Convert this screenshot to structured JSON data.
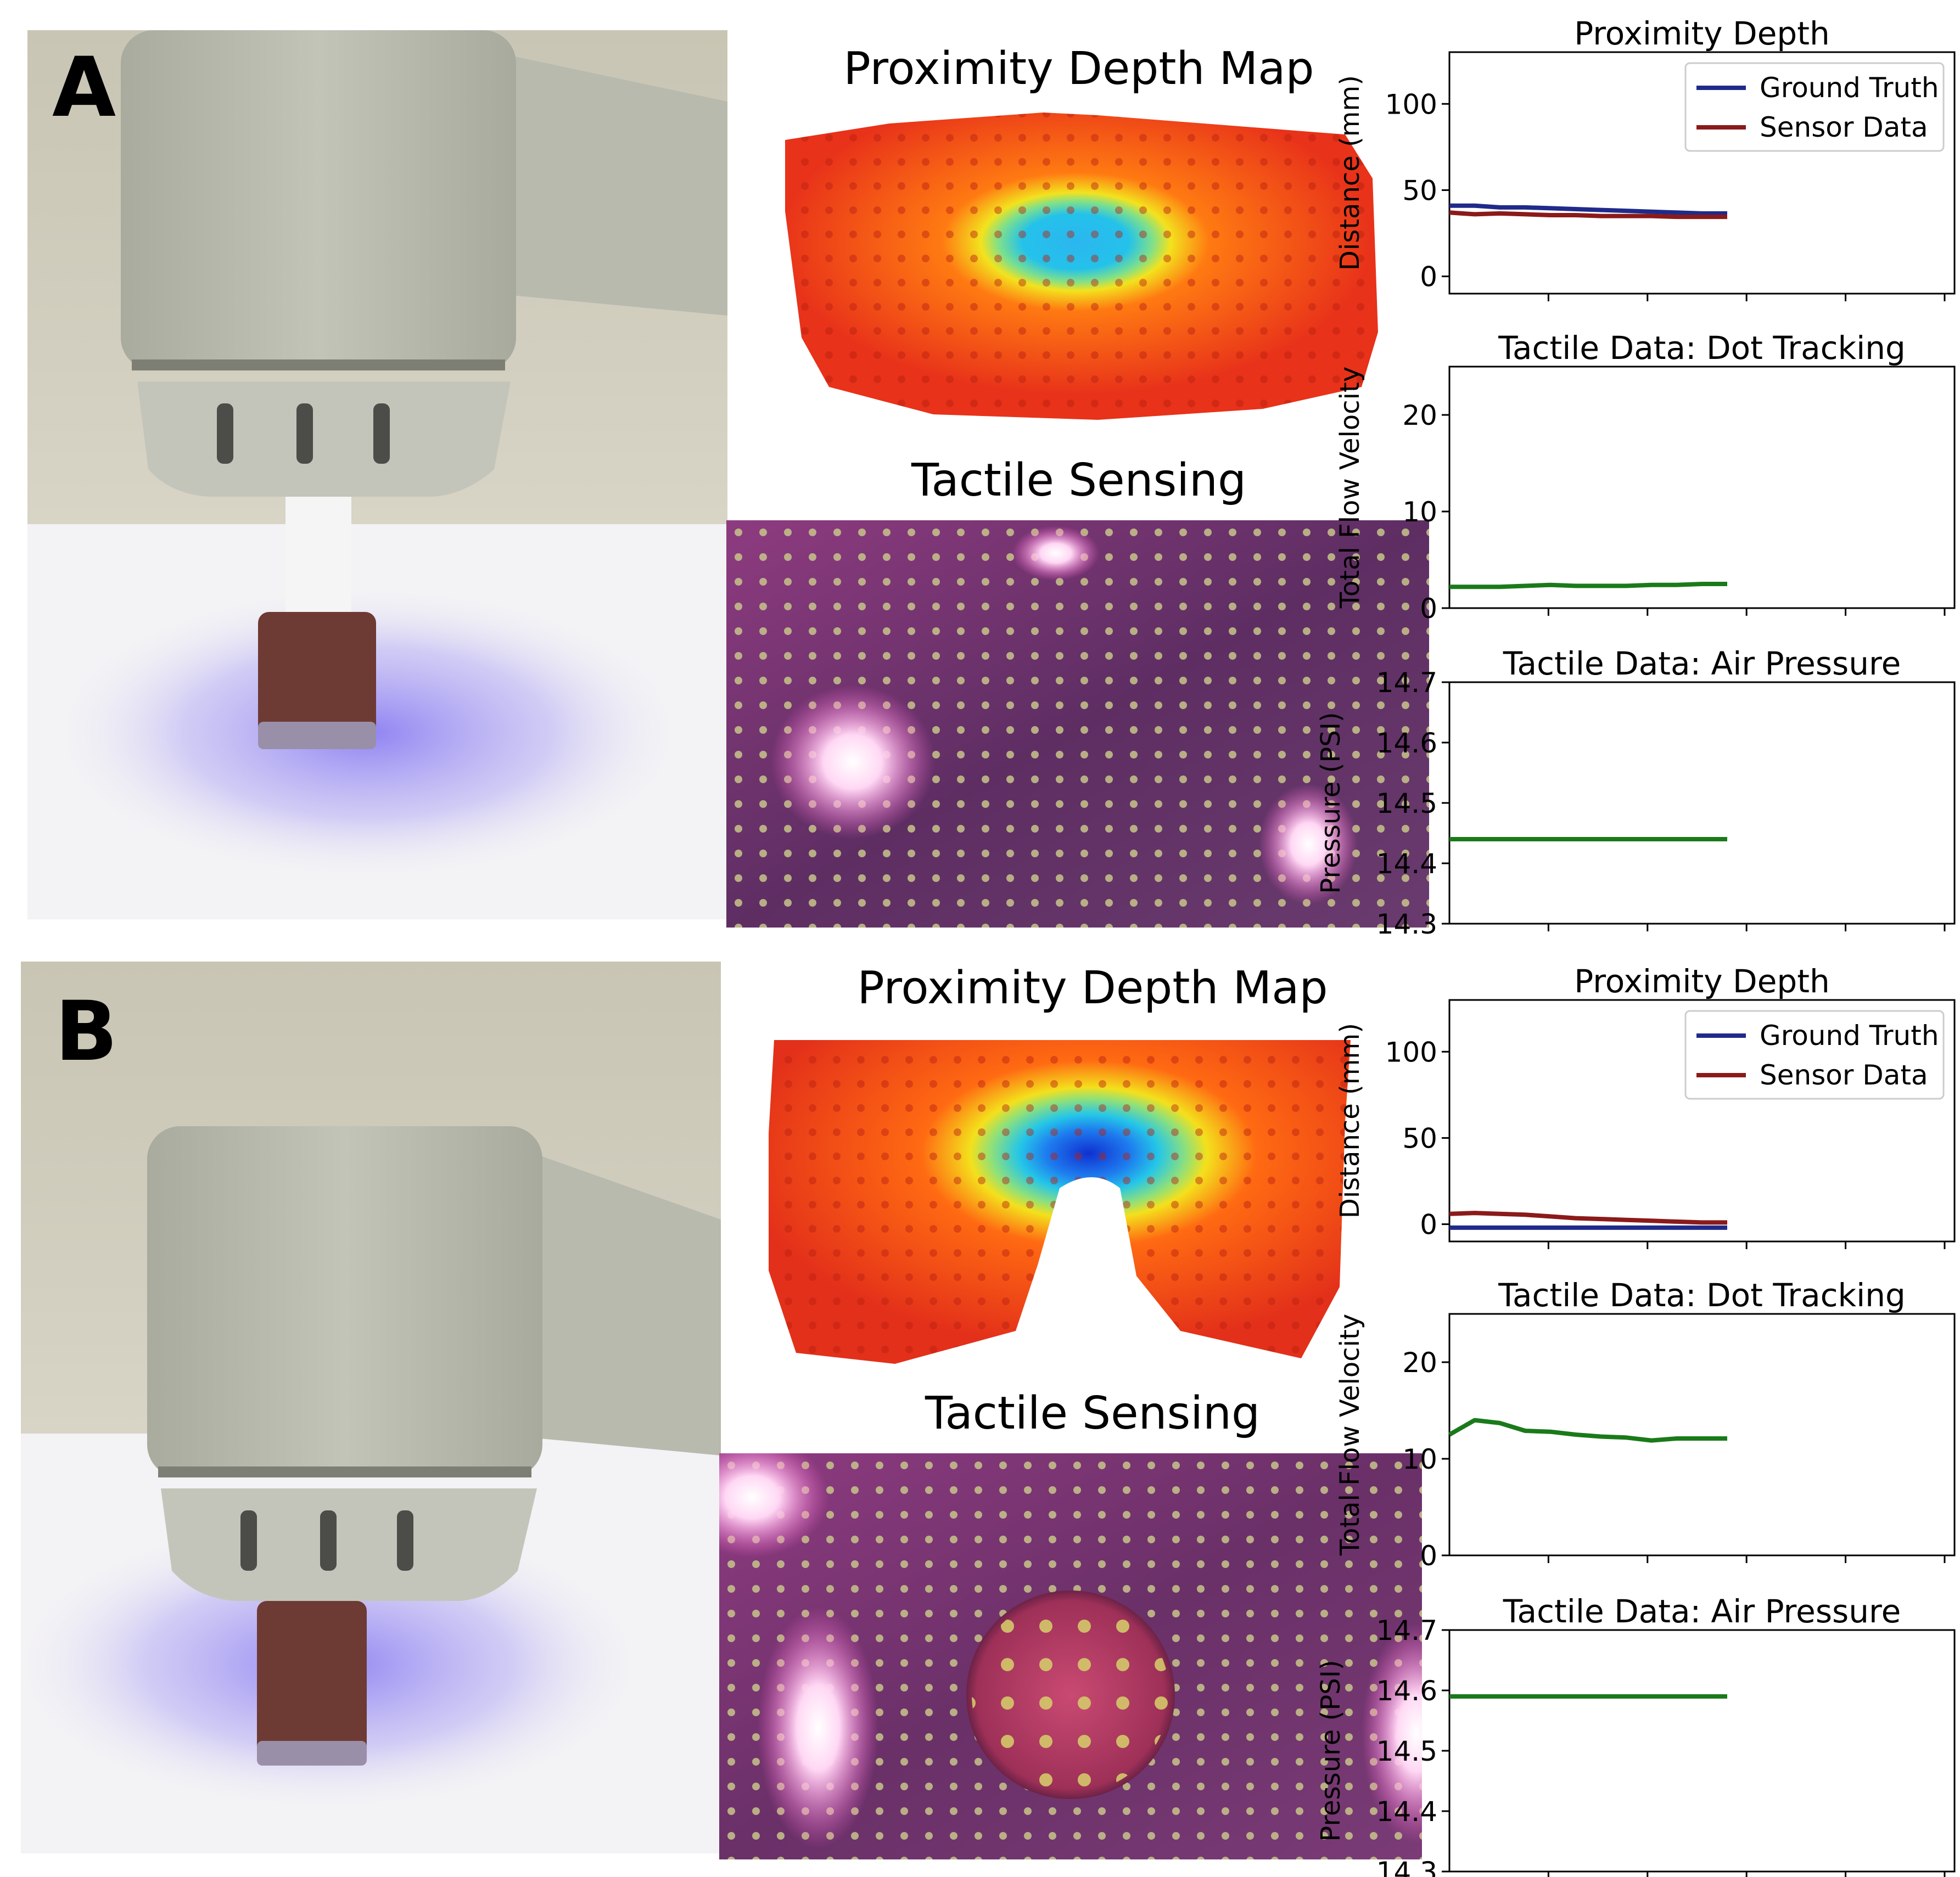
{
  "panels": [
    {
      "letter": "A",
      "depth_map_title": "Proximity Depth Map",
      "tactile_title": "Tactile Sensing"
    },
    {
      "letter": "B",
      "depth_map_title": "Proximity Depth Map",
      "tactile_title": "Tactile Sensing"
    }
  ],
  "colors": {
    "ground_truth": "#1f2a8a",
    "sensor_data": "#8b1a1a",
    "tactile": "#1a7a1a"
  },
  "chart_data": [
    {
      "type": "line",
      "panel": "A",
      "title": "Proximity Depth",
      "ylabel": "Distance (mm)",
      "ylim": [
        -10,
        130
      ],
      "yticks": [
        0,
        50,
        100
      ],
      "xlim": [
        0,
        10
      ],
      "legend": "top-right",
      "series": [
        {
          "name": "Ground Truth",
          "color": "#1f2a8a",
          "x": [
            0,
            0.5,
            1,
            1.5,
            2,
            2.5,
            3,
            3.5,
            4,
            4.5,
            5,
            5.5
          ],
          "values": [
            41,
            41,
            40,
            40,
            39.5,
            39,
            38.5,
            38,
            37.5,
            37,
            36.5,
            36.5
          ]
        },
        {
          "name": "Sensor Data",
          "color": "#8b1a1a",
          "x": [
            0,
            0.5,
            1,
            1.5,
            2,
            2.5,
            3,
            3.5,
            4,
            4.5,
            5,
            5.5
          ],
          "values": [
            37,
            36,
            36.5,
            36,
            35.5,
            35.5,
            35,
            35,
            35,
            34.5,
            34.5,
            34.5
          ]
        }
      ]
    },
    {
      "type": "line",
      "panel": "A",
      "title": "Tactile Data: Dot Tracking",
      "ylabel": "Total Flow Velocity",
      "ylim": [
        0,
        25
      ],
      "yticks": [
        0,
        10,
        20
      ],
      "xlim": [
        0,
        10
      ],
      "series": [
        {
          "color": "#1a7a1a",
          "x": [
            0,
            0.5,
            1,
            1.5,
            2,
            2.5,
            3,
            3.5,
            4,
            4.5,
            5,
            5.5
          ],
          "values": [
            2.2,
            2.2,
            2.2,
            2.3,
            2.4,
            2.3,
            2.3,
            2.3,
            2.4,
            2.4,
            2.5,
            2.5
          ]
        }
      ]
    },
    {
      "type": "line",
      "panel": "A",
      "title": "Tactile Data: Air Pressure",
      "ylabel": "Pressure (PSI)",
      "ylim": [
        14.3,
        14.7
      ],
      "yticks": [
        14.3,
        14.4,
        14.5,
        14.6,
        14.7
      ],
      "xlim": [
        0,
        10
      ],
      "series": [
        {
          "color": "#1a7a1a",
          "x": [
            0,
            5.5
          ],
          "values": [
            14.44,
            14.44
          ]
        }
      ]
    },
    {
      "type": "line",
      "panel": "B",
      "title": "Proximity Depth",
      "ylabel": "Distance (mm)",
      "ylim": [
        -10,
        130
      ],
      "yticks": [
        0,
        50,
        100
      ],
      "xlim": [
        0,
        10
      ],
      "legend": "top-right",
      "series": [
        {
          "name": "Ground Truth",
          "color": "#1f2a8a",
          "x": [
            0,
            5.5
          ],
          "values": [
            -2,
            -2
          ]
        },
        {
          "name": "Sensor Data",
          "color": "#8b1a1a",
          "x": [
            0,
            0.5,
            1,
            1.5,
            2,
            2.5,
            3,
            3.5,
            4,
            4.5,
            5,
            5.5
          ],
          "values": [
            6,
            6.5,
            6,
            5.5,
            4.5,
            3.5,
            3,
            2.5,
            2,
            1.5,
            1,
            1
          ]
        }
      ]
    },
    {
      "type": "line",
      "panel": "B",
      "title": "Tactile Data: Dot Tracking",
      "ylabel": "Total Flow Velocity",
      "ylim": [
        0,
        25
      ],
      "yticks": [
        0,
        10,
        20
      ],
      "xlim": [
        0,
        10
      ],
      "series": [
        {
          "color": "#1a7a1a",
          "x": [
            0,
            0.5,
            1,
            1.5,
            2,
            2.5,
            3,
            3.5,
            4,
            4.5,
            5,
            5.5
          ],
          "values": [
            12.5,
            14,
            13.7,
            12.9,
            12.8,
            12.5,
            12.3,
            12.2,
            11.9,
            12.1,
            12.1,
            12.1
          ]
        }
      ]
    },
    {
      "type": "line",
      "panel": "B",
      "title": "Tactile Data: Air Pressure",
      "ylabel": "Pressure (PSI)",
      "ylim": [
        14.3,
        14.7
      ],
      "yticks": [
        14.3,
        14.4,
        14.5,
        14.6,
        14.7
      ],
      "xlim": [
        0,
        10
      ],
      "series": [
        {
          "color": "#1a7a1a",
          "x": [
            0,
            5.5
          ],
          "values": [
            14.59,
            14.59
          ]
        }
      ]
    }
  ]
}
